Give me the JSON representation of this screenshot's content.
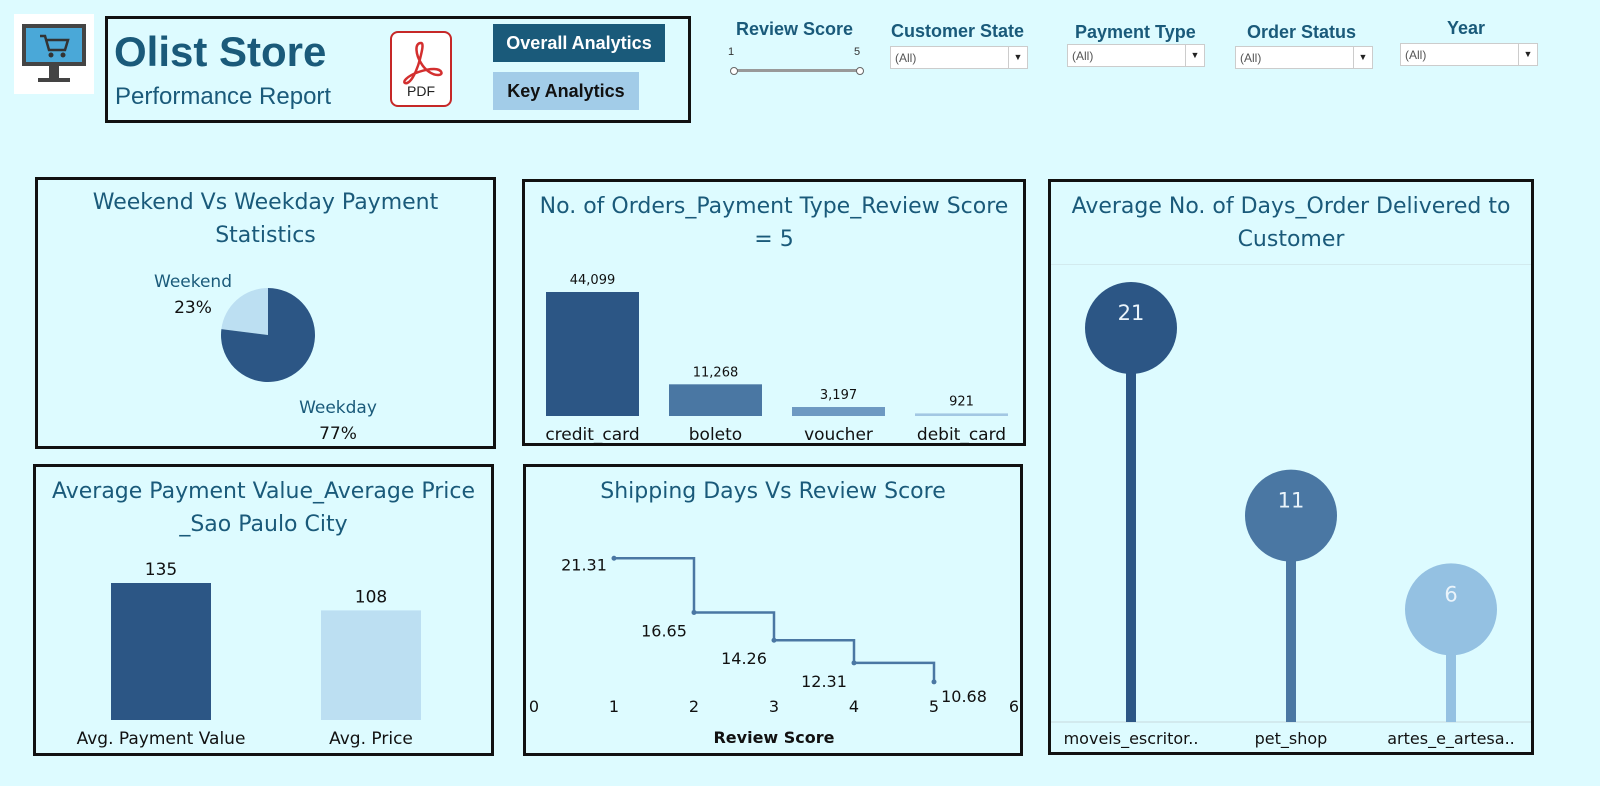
{
  "header": {
    "store_title": "Olist Store",
    "subtitle": "Performance Report",
    "pdf_label": "PDF",
    "overall_analytics": "Overall Analytics",
    "key_analytics": "Key Analytics"
  },
  "filters": {
    "review_score": {
      "label": "Review Score",
      "min": "1",
      "max": "5"
    },
    "customer_state": {
      "label": "Customer State",
      "value": "(All)"
    },
    "payment_type": {
      "label": "Payment Type",
      "value": "(All)"
    },
    "order_status": {
      "label": "Order Status",
      "value": "(All)"
    },
    "year": {
      "label": "Year",
      "value": "(All)"
    }
  },
  "panels": {
    "weekend_weekday": {
      "title_line1": "Weekend Vs Weekday Payment",
      "title_line2": "Statistics",
      "chart_data": {
        "type": "pie",
        "slices": [
          {
            "name": "Weekend",
            "label": "23%",
            "value": 23,
            "color": "#bcdff2"
          },
          {
            "name": "Weekday",
            "label": "77%",
            "value": 77,
            "color": "#2c5685"
          }
        ]
      }
    },
    "orders_payment": {
      "title_line1": "No. of Orders_Payment Type_Review Score",
      "title_line2": "= 5",
      "chart_data": {
        "type": "bar",
        "categories": [
          "credit_card",
          "boleto",
          "voucher",
          "debit_card"
        ],
        "values": [
          44099,
          11268,
          3197,
          921
        ],
        "value_labels": [
          "44,099",
          "11,268",
          "3,197",
          "921"
        ],
        "colors": [
          "#2c5685",
          "#4a77a3",
          "#6d99c2",
          "#a2c7e3"
        ]
      }
    },
    "avg_days": {
      "title_line1": "Average No. of Days_Order Delivered to",
      "title_line2": "Customer",
      "chart_data": {
        "type": "bar",
        "categories": [
          "moveis_escritor..",
          "pet_shop",
          "artes_e_artesa.."
        ],
        "values": [
          21,
          11,
          6
        ],
        "value_labels": [
          "21",
          "11",
          "6"
        ],
        "colors": [
          "#2c5685",
          "#4a77a3",
          "#94c1e2"
        ]
      }
    },
    "avg_payment": {
      "title_line1": "Average Payment Value_Average Price",
      "title_line2": "_Sao Paulo City",
      "chart_data": {
        "type": "bar",
        "categories": [
          "Avg. Payment Value",
          "Avg. Price"
        ],
        "values": [
          135,
          108
        ],
        "value_labels": [
          "135",
          "108"
        ],
        "colors": [
          "#2c5685",
          "#bcdff2"
        ]
      }
    },
    "shipping": {
      "title": "Shipping Days Vs Review Score",
      "chart_data": {
        "type": "line",
        "x": [
          1,
          2,
          3,
          4,
          5
        ],
        "y": [
          21.31,
          16.65,
          14.26,
          12.31,
          10.68
        ],
        "value_labels": [
          "21.31",
          "16.65",
          "14.26",
          "12.31",
          "10.68"
        ],
        "xticks": [
          "0",
          "1",
          "2",
          "3",
          "4",
          "5",
          "6"
        ],
        "xlabel": "Review Score",
        "xlim": [
          0,
          6
        ],
        "color": "#4a77a3"
      }
    }
  }
}
